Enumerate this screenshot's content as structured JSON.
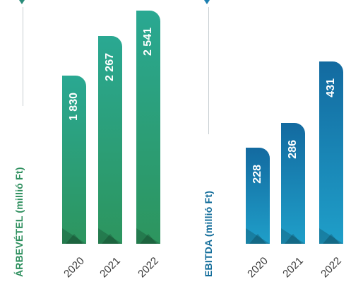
{
  "chart_data": [
    {
      "type": "bar",
      "ylabel": "ÁRBEVÉTEL (millió Ft)",
      "categories": [
        "2020",
        "2021",
        "2022"
      ],
      "values": [
        1830,
        2267,
        2541
      ],
      "value_labels": [
        "1 830",
        "2 267",
        "2 541"
      ],
      "colors": {
        "accent": "#2e9a6a",
        "top": "#2aa892",
        "bottom": "#2d955e",
        "label": "#2e8f5e",
        "pointer": "#2a8c7a"
      }
    },
    {
      "type": "bar",
      "ylabel": "EBITDA (millió Ft)",
      "categories": [
        "2020",
        "2021",
        "2022"
      ],
      "values": [
        228,
        286,
        431
      ],
      "value_labels": [
        "228",
        "286",
        "431"
      ],
      "colors": {
        "accent": "#1a86b8",
        "top": "#136aa0",
        "bottom": "#1f9fc9",
        "label": "#136d9a",
        "pointer": "#1c7fb0"
      }
    }
  ]
}
